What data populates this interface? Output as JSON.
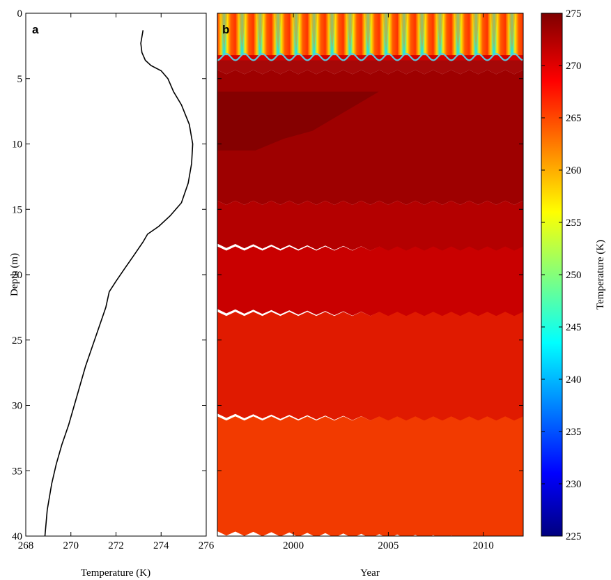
{
  "chart_data": [
    {
      "panel": "a",
      "type": "line",
      "xlabel": "Temperature (K)",
      "ylabel": "Depth (m)",
      "xlim": [
        268,
        276
      ],
      "ylim": [
        40,
        0
      ],
      "y_reversed": true,
      "xticks": [
        268,
        270,
        272,
        274,
        276
      ],
      "yticks": [
        0,
        5,
        10,
        15,
        20,
        25,
        30,
        35,
        40
      ],
      "grid": false,
      "line_color": "#000000",
      "series": [
        {
          "x": [
            273.2,
            273.1,
            273.15,
            273.3,
            273.55,
            274.0,
            274.3,
            274.55,
            274.9,
            275.25,
            275.4,
            275.35,
            275.2,
            274.9,
            274.4,
            273.9,
            273.4,
            273.2,
            272.8,
            272.4,
            272.0,
            271.7,
            271.55,
            271.25,
            270.95,
            270.65,
            270.4,
            270.15,
            269.9,
            269.6,
            269.35,
            269.15,
            268.95,
            268.85
          ],
          "y": [
            1.3,
            2.3,
            3.0,
            3.6,
            4.0,
            4.4,
            5.0,
            6.0,
            7.0,
            8.5,
            10.0,
            11.5,
            13.0,
            14.5,
            15.5,
            16.3,
            16.9,
            17.5,
            18.5,
            19.5,
            20.5,
            21.3,
            22.5,
            24.0,
            25.5,
            27.0,
            28.5,
            30.0,
            31.5,
            33.0,
            34.5,
            36.0,
            38.0,
            40.0
          ]
        }
      ]
    },
    {
      "panel": "b",
      "type": "heatmap",
      "xlabel": "Year",
      "ylabel": "Depth (m)",
      "colorbar_label": "Temperature (K)",
      "x_range": [
        1996.0,
        2012.1
      ],
      "xticks": [
        2000,
        2005,
        2010
      ],
      "ylim": [
        40,
        0
      ],
      "y_reversed": true,
      "clim": [
        225,
        275
      ],
      "colorbar_ticks": [
        225,
        230,
        235,
        240,
        245,
        250,
        255,
        260,
        265,
        270,
        275
      ],
      "colormap": "jet",
      "seasonal_cycles": 17,
      "active_layer_line_color": "#5bc8e0",
      "active_layer_depth_m": [
        3.1,
        3.6
      ],
      "layers": [
        {
          "from_depth": 3.3,
          "to_depth": 4.5,
          "temperature": 274.0,
          "color": "#a50808"
        },
        {
          "from_depth": 4.5,
          "to_depth": 14.5,
          "temperature": 274.3,
          "color": "#9e0000"
        },
        {
          "from_depth": 6.0,
          "to_depth": 10.5,
          "temperature": 275.0,
          "color": "#850000"
        },
        {
          "from_depth": 14.5,
          "to_depth": 18.0,
          "temperature": 273.5,
          "color": "#b40000"
        },
        {
          "from_depth": 18.0,
          "to_depth": 23.0,
          "temperature": 272.5,
          "color": "#c90000"
        },
        {
          "from_depth": 23.0,
          "to_depth": 31.0,
          "temperature": 271.5,
          "color": "#e01a00"
        },
        {
          "from_depth": 31.0,
          "to_depth": 40.0,
          "temperature": 270.5,
          "color": "#f23a00"
        }
      ]
    }
  ]
}
